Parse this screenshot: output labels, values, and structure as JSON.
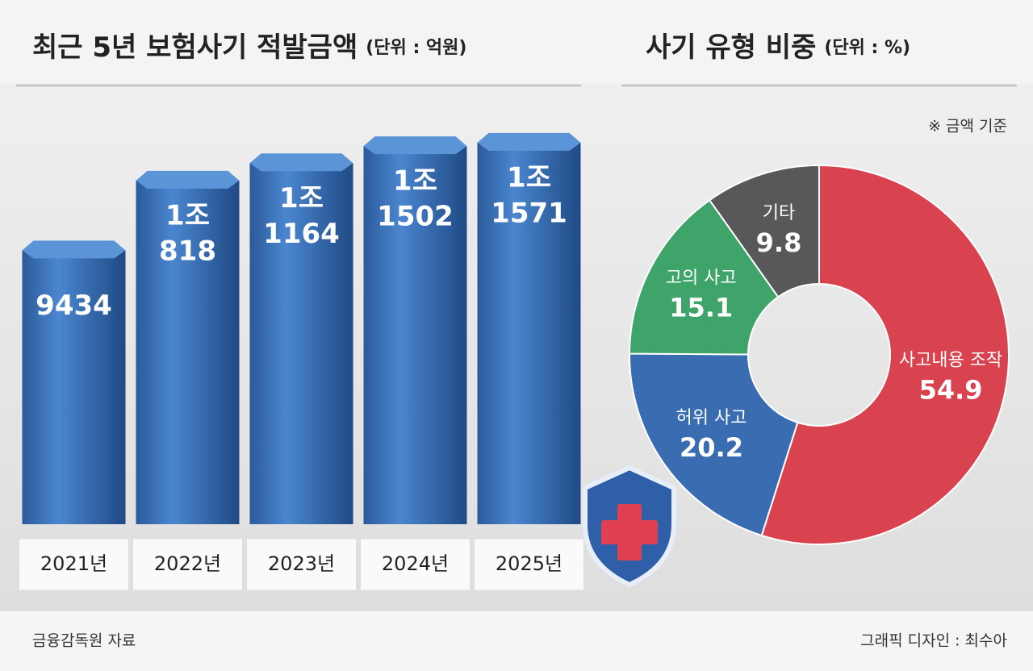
{
  "chart_data": [
    {
      "type": "bar",
      "title": "최근 5년 보험사기 적발금액",
      "subtitle": "(단위 : 억원)",
      "categories": [
        "2021년",
        "2022년",
        "2023년",
        "2024년",
        "2025년"
      ],
      "values": [
        9434,
        10818,
        11164,
        11502,
        11571
      ],
      "value_labels": [
        [
          "9434"
        ],
        [
          "1조",
          "818"
        ],
        [
          "1조",
          "1164"
        ],
        [
          "1조",
          "1502"
        ],
        [
          "1조",
          "1571"
        ]
      ],
      "color": "#3a6fb5",
      "ylim": [
        4000,
        12000
      ]
    },
    {
      "type": "donut",
      "title": "사기 유형 비중",
      "subtitle": "(단위 : %)",
      "note": "※ 금액 기준",
      "categories": [
        "사고내용 조작",
        "허위 사고",
        "고의 사고",
        "기타"
      ],
      "values": [
        54.9,
        20.2,
        15.1,
        9.8
      ],
      "colors": [
        "#d9424f",
        "#3a6cb2",
        "#3fa46a",
        "#58585a"
      ]
    }
  ],
  "footer": {
    "source": "금융감독원 자료",
    "credit": "그래픽 디자인 : 최수아"
  }
}
